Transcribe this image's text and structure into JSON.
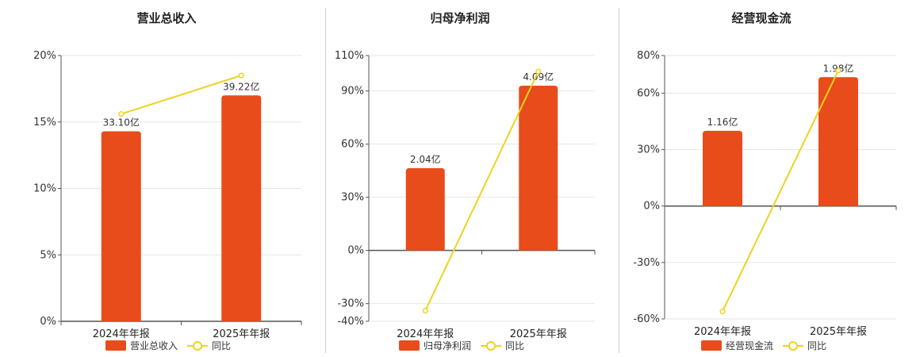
{
  "colors": {
    "bar": "#E84C1A",
    "line": "#F1D21E",
    "grid": "#e6e6e6",
    "axis": "#555555"
  },
  "legend": {
    "line_label": "同比"
  },
  "chart_data": [
    {
      "type": "bar",
      "title": "营业总收入",
      "categories": [
        "2024年年报",
        "2025年年报"
      ],
      "ylim": [
        0,
        20
      ],
      "yticks": [
        0,
        5,
        10,
        15,
        20
      ],
      "ytick_labels": [
        "0%",
        "5%",
        "10%",
        "15%",
        "20%"
      ],
      "series": [
        {
          "name": "营业总收入",
          "kind": "bar",
          "values": [
            14.3,
            17.0
          ],
          "labels": [
            "33.10亿",
            "39.22亿"
          ]
        },
        {
          "name": "同比",
          "kind": "line",
          "values": [
            15.6,
            18.5
          ]
        }
      ],
      "grid": true,
      "legend_position": "bottom"
    },
    {
      "type": "bar",
      "title": "归母净利润",
      "categories": [
        "2024年年报",
        "2025年年报"
      ],
      "ylim": [
        -40,
        110
      ],
      "yticks": [
        -40,
        -30,
        0,
        30,
        60,
        90,
        110
      ],
      "ytick_labels": [
        "-40%",
        "-30%",
        "0%",
        "30%",
        "60%",
        "90%",
        "110%"
      ],
      "series": [
        {
          "name": "归母净利润",
          "kind": "bar",
          "values": [
            46.4,
            93.0
          ],
          "labels": [
            "2.04亿",
            "4.09亿"
          ]
        },
        {
          "name": "同比",
          "kind": "line",
          "values": [
            -34.0,
            101.0
          ]
        }
      ],
      "grid": true,
      "legend_position": "bottom"
    },
    {
      "type": "bar",
      "title": "经营现金流",
      "categories": [
        "2024年年报",
        "2025年年报"
      ],
      "ylim": [
        -60,
        80
      ],
      "yticks": [
        -60,
        -30,
        0,
        30,
        60,
        80
      ],
      "ytick_labels": [
        "-60%",
        "-30%",
        "0%",
        "30%",
        "60%",
        "80%"
      ],
      "series": [
        {
          "name": "经营现金流",
          "kind": "bar",
          "values": [
            40.0,
            68.5
          ],
          "labels": [
            "1.16亿",
            "1.98亿"
          ]
        },
        {
          "name": "同比",
          "kind": "line",
          "values": [
            -56.0,
            72.0
          ]
        }
      ],
      "grid": true,
      "legend_position": "bottom"
    }
  ]
}
